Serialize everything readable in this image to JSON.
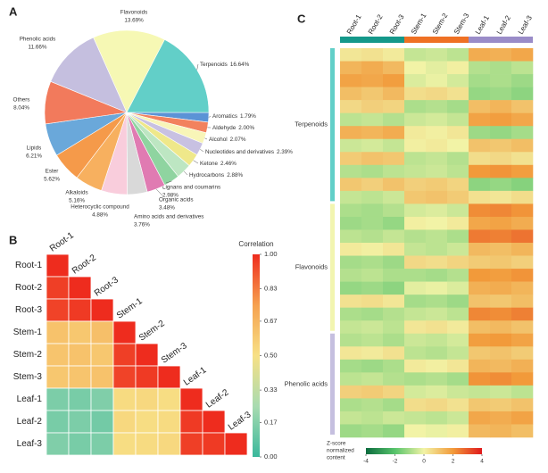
{
  "chart_data": [
    {
      "type": "pie",
      "panel_label": "A",
      "categories": [
        "Flavonoids",
        "Terpenoids",
        "Aromatics",
        "Aldehyde",
        "Alcohol",
        "Nucleotides and derivatives",
        "Ketone",
        "Hydrocarbons",
        "Lignans and coumarins",
        "Organic acids",
        "Amino acids and derivatives",
        "Heterocyclic compound",
        "Alkaloids",
        "Ester",
        "Lipids",
        "Others",
        "Phenolic acids"
      ],
      "values": [
        13.69,
        16.64,
        1.79,
        2.0,
        2.07,
        2.39,
        2.46,
        2.88,
        2.98,
        3.48,
        3.76,
        4.88,
        5.16,
        5.62,
        6.21,
        8.04,
        11.66
      ],
      "value_labels": [
        "13.69%",
        "16.64%",
        "1.79%",
        "2.00%",
        "2.07%",
        "2.39%",
        "2.46%",
        "2.88%",
        "2.98%",
        "3.48%",
        "3.76%",
        "4.88%",
        "5.16%",
        "5.62%",
        "6.21%",
        "8.04%",
        "11.66%"
      ],
      "colors": [
        "#f6f8b4",
        "#62cfc8",
        "#5b93d6",
        "#f2825e",
        "#f8f5b8",
        "#c8c1e2",
        "#efe88a",
        "#bde6c2",
        "#8fd4a0",
        "#e07bb2",
        "#d9d9d9",
        "#f9cddc",
        "#f7b05f",
        "#f59a4a",
        "#6aa8da",
        "#f27a5c",
        "#c5bfdf"
      ]
    },
    {
      "type": "heatmap",
      "panel_label": "B",
      "categories": [
        "Root-1",
        "Root-2",
        "Root-3",
        "Stem-1",
        "Stem-2",
        "Stem-3",
        "Leaf-1",
        "Leaf-2",
        "Leaf-3"
      ],
      "values": [
        [
          1,
          null,
          null,
          null,
          null,
          null,
          null,
          null,
          null
        ],
        [
          0.96,
          1,
          null,
          null,
          null,
          null,
          null,
          null,
          null
        ],
        [
          0.95,
          0.97,
          1,
          null,
          null,
          null,
          null,
          null,
          null
        ],
        [
          0.62,
          0.6,
          0.63,
          1,
          null,
          null,
          null,
          null,
          null
        ],
        [
          0.61,
          0.62,
          0.6,
          0.96,
          1,
          null,
          null,
          null,
          null
        ],
        [
          0.6,
          0.61,
          0.62,
          0.95,
          0.97,
          1,
          null,
          null,
          null
        ],
        [
          0.15,
          0.14,
          0.16,
          0.52,
          0.53,
          0.51,
          1,
          null,
          null
        ],
        [
          0.14,
          0.15,
          0.13,
          0.53,
          0.51,
          0.52,
          0.97,
          1,
          null
        ],
        [
          0.16,
          0.14,
          0.15,
          0.51,
          0.52,
          0.53,
          0.96,
          0.97,
          1
        ]
      ],
      "zlim": [
        0,
        1
      ],
      "zticks": [
        {
          "value": 0,
          "label": "0.00"
        },
        0.17,
        0.33,
        {
          "value": 0.5,
          "label": "0.50"
        },
        0.67,
        0.83,
        {
          "value": 1,
          "label": "1.00"
        }
      ],
      "colorbar_title": "Correlation",
      "colorscale": [
        "#3ab89c",
        "#a8dbb0",
        "#f7e085",
        "#f6a14f",
        "#ee2c1e"
      ]
    },
    {
      "type": "heatmap",
      "panel_label": "C",
      "x": [
        "Root-1",
        "Root-2",
        "Root-3",
        "Stem-1",
        "Stem-2",
        "Stem-3",
        "Leaf-1",
        "Leaf-2",
        "Leaf-3"
      ],
      "values": [
        [
          0.3,
          0.4,
          0.2,
          -0.6,
          -0.5,
          -0.7,
          1.6,
          1.5,
          1.7
        ],
        [
          1.4,
          1.6,
          1.3,
          0.0,
          -0.2,
          0.1,
          -0.8,
          -0.9,
          -0.7
        ],
        [
          1.8,
          1.7,
          1.9,
          -0.3,
          -0.1,
          -0.4,
          -1.0,
          -0.9,
          -1.1
        ],
        [
          1.2,
          1.0,
          1.3,
          0.5,
          0.6,
          0.4,
          -1.2,
          -1.1,
          -1.3
        ],
        [
          0.6,
          0.8,
          0.7,
          -0.9,
          -0.8,
          -1.0,
          1.2,
          1.4,
          1.1
        ],
        [
          -0.7,
          -0.6,
          -0.8,
          -0.5,
          -0.4,
          -0.6,
          1.8,
          1.9,
          1.7
        ],
        [
          1.5,
          1.4,
          1.6,
          0.2,
          0.1,
          0.3,
          -1.1,
          -1.2,
          -1.0
        ],
        [
          -0.5,
          -0.4,
          -0.6,
          0.1,
          0.2,
          0.0,
          1.1,
          1.0,
          1.2
        ],
        [
          0.9,
          1.1,
          1.0,
          -0.7,
          -0.6,
          -0.8,
          0.5,
          0.6,
          0.4
        ],
        [
          -0.8,
          -0.9,
          -0.7,
          -0.6,
          -0.5,
          -0.7,
          2.0,
          2.1,
          1.9
        ],
        [
          1.0,
          0.8,
          1.1,
          0.8,
          0.9,
          0.7,
          -1.3,
          -1.2,
          -1.4
        ],
        [
          -0.6,
          -0.7,
          -0.5,
          1.0,
          1.1,
          0.9,
          0.4,
          0.3,
          0.5
        ],
        [
          -0.9,
          -1.0,
          -0.8,
          -0.4,
          -0.3,
          -0.5,
          2.2,
          2.3,
          2.1
        ],
        [
          -1.1,
          -1.0,
          -1.2,
          0.1,
          0.0,
          0.2,
          1.7,
          1.8,
          1.6
        ],
        [
          -0.7,
          -0.8,
          -0.6,
          -0.8,
          -0.7,
          -0.9,
          2.5,
          2.4,
          2.6
        ],
        [
          0.2,
          0.1,
          0.3,
          -0.6,
          -0.7,
          -0.5,
          1.3,
          1.2,
          1.4
        ],
        [
          -1.0,
          -0.9,
          -1.1,
          0.6,
          0.5,
          0.7,
          0.9,
          1.0,
          0.8
        ],
        [
          -0.8,
          -0.7,
          -0.9,
          -0.9,
          -1.0,
          -0.8,
          2.0,
          1.9,
          2.1
        ],
        [
          -1.2,
          -1.1,
          -1.3,
          -0.2,
          -0.1,
          -0.3,
          1.5,
          1.6,
          1.4
        ],
        [
          0.4,
          0.5,
          0.3,
          -1.0,
          -0.9,
          -1.1,
          1.1,
          1.0,
          1.2
        ],
        [
          -0.9,
          -1.0,
          -0.8,
          -0.6,
          -0.5,
          -0.7,
          2.3,
          2.2,
          2.4
        ],
        [
          -0.6,
          -0.5,
          -0.7,
          0.3,
          0.4,
          0.2,
          1.2,
          1.3,
          1.1
        ],
        [
          -0.8,
          -0.7,
          -0.9,
          -0.5,
          -0.6,
          -0.4,
          1.9,
          2.0,
          1.8
        ],
        [
          0.3,
          0.2,
          0.4,
          -0.7,
          -0.8,
          -0.6,
          1.0,
          1.1,
          0.9
        ],
        [
          -1.0,
          -1.1,
          -0.9,
          0.2,
          0.1,
          0.3,
          1.4,
          1.3,
          1.5
        ],
        [
          -0.7,
          -0.6,
          -0.8,
          -0.9,
          -0.8,
          -1.0,
          2.1,
          2.2,
          2.0
        ],
        [
          0.8,
          0.9,
          0.7,
          -0.4,
          -0.3,
          -0.5,
          -0.6,
          -0.5,
          -0.7
        ],
        [
          -0.9,
          -0.8,
          -1.0,
          0.5,
          0.6,
          0.4,
          1.0,
          0.9,
          1.1
        ],
        [
          -0.6,
          -0.7,
          -0.5,
          -0.6,
          -0.7,
          -0.5,
          1.7,
          1.6,
          1.8
        ],
        [
          -1.1,
          -1.0,
          -1.2,
          0.0,
          -0.1,
          0.1,
          1.3,
          1.4,
          1.2
        ]
      ],
      "column_groups": [
        {
          "color": "#14988a",
          "count": 3
        },
        {
          "color": "#ef7124",
          "count": 3
        },
        {
          "color": "#9a8cc8",
          "count": 3
        }
      ],
      "row_groups": [
        {
          "name": "Terpenoids",
          "color": "#62cfc8",
          "count": 12
        },
        {
          "name": "Flavonoids",
          "color": "#f2f5b0",
          "count": 10
        },
        {
          "name": "Phenolic acids",
          "color": "#c5bfdf",
          "count": 8
        }
      ],
      "zlim": [
        -4,
        4
      ],
      "zticks": [
        -4,
        -2,
        0,
        2,
        4
      ],
      "colorbar_title": [
        "Z-score",
        "normalized",
        "content"
      ],
      "colorscale": [
        "#0b6b3e",
        "#57c46b",
        "#f2f3a6",
        "#f29a3a",
        "#e0191c"
      ]
    }
  ]
}
